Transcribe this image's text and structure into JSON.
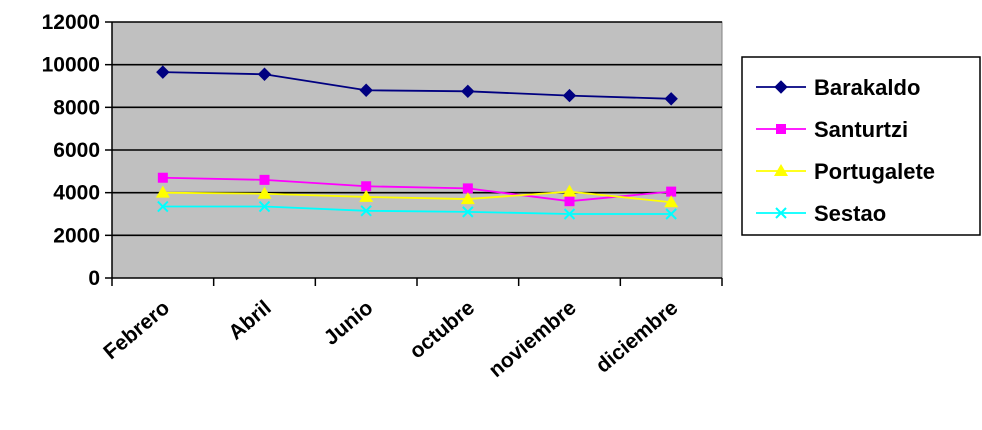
{
  "chart_data": {
    "type": "line",
    "categories": [
      "Febrero",
      "Abril",
      "Junio",
      "octubre",
      "noviembre",
      "diciembre"
    ],
    "series": [
      {
        "name": "Barakaldo",
        "values": [
          9650,
          9550,
          8800,
          8750,
          8550,
          8400
        ],
        "color": "#000080",
        "marker": "diamond"
      },
      {
        "name": "Santurtzi",
        "values": [
          4700,
          4600,
          4300,
          4200,
          3600,
          4050
        ],
        "color": "#ff00ff",
        "marker": "square"
      },
      {
        "name": "Portugalete",
        "values": [
          4000,
          3950,
          3800,
          3700,
          4050,
          3550
        ],
        "color": "#ffff00",
        "marker": "triangle"
      },
      {
        "name": "Sestao",
        "values": [
          3350,
          3350,
          3150,
          3100,
          3000,
          3000
        ],
        "color": "#00ffff",
        "marker": "x"
      }
    ],
    "ylim": [
      0,
      12000
    ],
    "yticks": [
      "0",
      "2000",
      "4000",
      "6000",
      "8000",
      "10000",
      "12000"
    ],
    "grid": true,
    "plot_background": "#c0c0c0",
    "legend_position": "right"
  }
}
